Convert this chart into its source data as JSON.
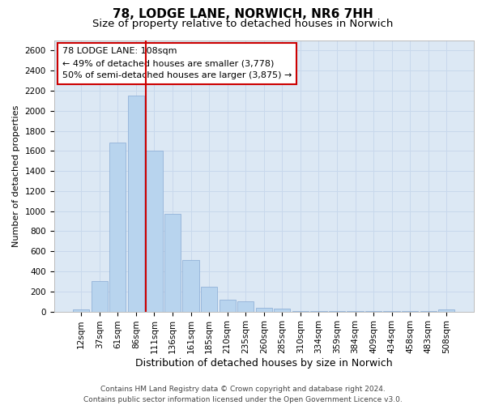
{
  "title": "78, LODGE LANE, NORWICH, NR6 7HH",
  "subtitle": "Size of property relative to detached houses in Norwich",
  "xlabel": "Distribution of detached houses by size in Norwich",
  "ylabel": "Number of detached properties",
  "footer_line1": "Contains HM Land Registry data © Crown copyright and database right 2024.",
  "footer_line2": "Contains public sector information licensed under the Open Government Licence v3.0.",
  "annotation_line1": "78 LODGE LANE: 108sqm",
  "annotation_line2": "← 49% of detached houses are smaller (3,778)",
  "annotation_line3": "50% of semi-detached houses are larger (3,875) →",
  "categories": [
    "12sqm",
    "37sqm",
    "61sqm",
    "86sqm",
    "111sqm",
    "136sqm",
    "161sqm",
    "185sqm",
    "210sqm",
    "235sqm",
    "260sqm",
    "285sqm",
    "310sqm",
    "334sqm",
    "359sqm",
    "384sqm",
    "409sqm",
    "434sqm",
    "458sqm",
    "483sqm",
    "508sqm"
  ],
  "values": [
    20,
    300,
    1680,
    2150,
    1600,
    970,
    510,
    250,
    120,
    100,
    40,
    30,
    5,
    3,
    3,
    3,
    3,
    3,
    3,
    3,
    20
  ],
  "bar_color": "#b8d4ee",
  "bar_edge_color": "#88aad4",
  "grid_color": "#c8d8ec",
  "background_color": "#dce8f4",
  "vline_color": "#cc0000",
  "annotation_box_edge_color": "#cc0000",
  "ylim": [
    0,
    2700
  ],
  "yticks": [
    0,
    200,
    400,
    600,
    800,
    1000,
    1200,
    1400,
    1600,
    1800,
    2000,
    2200,
    2400,
    2600
  ],
  "title_fontsize": 11,
  "subtitle_fontsize": 9.5,
  "ylabel_fontsize": 8,
  "xlabel_fontsize": 9,
  "tick_fontsize": 7.5,
  "annotation_fontsize": 8,
  "footer_fontsize": 6.5,
  "vline_bar_index": 4
}
